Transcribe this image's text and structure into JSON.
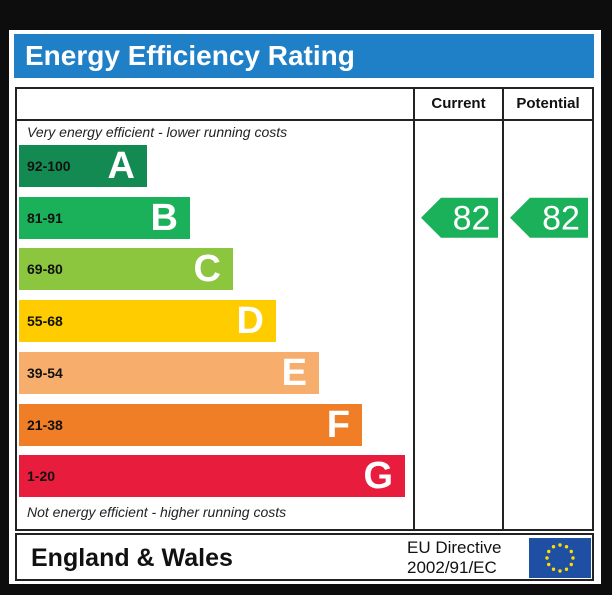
{
  "title": "Energy Efficiency Rating",
  "columns": {
    "current": "Current",
    "potential": "Potential"
  },
  "top_note": "Very energy efficient - lower running costs",
  "bottom_note": "Not energy efficient - higher running costs",
  "footer": {
    "region": "England & Wales",
    "directive_line1": "EU Directive",
    "directive_line2": "2002/91/EC",
    "flag_icon": "eu-flag-icon"
  },
  "chart_data": {
    "type": "bar",
    "bands": [
      {
        "letter": "A",
        "range": "92-100",
        "color": "#138a52"
      },
      {
        "letter": "B",
        "range": "81-91",
        "color": "#1bb15a"
      },
      {
        "letter": "C",
        "range": "69-80",
        "color": "#8cc63f"
      },
      {
        "letter": "D",
        "range": "55-68",
        "color": "#ffcc00"
      },
      {
        "letter": "E",
        "range": "39-54",
        "color": "#f7ae6c"
      },
      {
        "letter": "F",
        "range": "21-38",
        "color": "#f07e26"
      },
      {
        "letter": "G",
        "range": "1-20",
        "color": "#e81c3c"
      }
    ],
    "current": {
      "value": 82,
      "band": "B",
      "color": "#1bb15a"
    },
    "potential": {
      "value": 82,
      "band": "B",
      "color": "#1bb15a"
    }
  }
}
